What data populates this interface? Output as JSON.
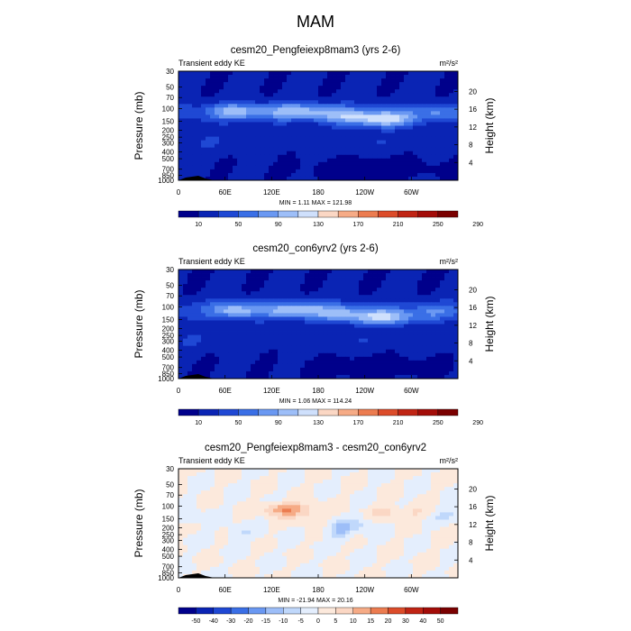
{
  "figure": {
    "title": "MAM"
  },
  "chart_data": [
    {
      "type": "heatmap",
      "title": "cesm20_Pengfeiexp8mam3 (yrs 2-6)",
      "subtitle_left": "Transient eddy KE",
      "units": "m²/s²",
      "xlabel": "",
      "ylabel": "Pressure (mb)",
      "ylabel_right": "Height (km)",
      "x_ticks": [
        "0",
        "60E",
        "120E",
        "180",
        "120W",
        "60W"
      ],
      "y_ticks": [
        "30",
        "50",
        "70",
        "100",
        "150",
        "200",
        "250",
        "300",
        "400",
        "500",
        "700",
        "850",
        "1000"
      ],
      "y_ticks_right": [
        "20",
        "16",
        "12",
        "8",
        "4"
      ],
      "minmax_text": "MIN =    1.11  MAX =   121.98",
      "colorbar_labels": [
        "10",
        "50",
        "90",
        "130",
        "170",
        "210",
        "250",
        "290"
      ]
    },
    {
      "type": "heatmap",
      "title": "cesm20_con6yrv2 (yrs 2-6)",
      "subtitle_left": "Transient eddy KE",
      "units": "m²/s²",
      "xlabel": "",
      "ylabel": "Pressure (mb)",
      "ylabel_right": "Height (km)",
      "x_ticks": [
        "0",
        "60E",
        "120E",
        "180",
        "120W",
        "60W"
      ],
      "y_ticks": [
        "30",
        "50",
        "70",
        "100",
        "150",
        "200",
        "250",
        "300",
        "400",
        "500",
        "700",
        "850",
        "1000"
      ],
      "y_ticks_right": [
        "20",
        "16",
        "12",
        "8",
        "4"
      ],
      "minmax_text": "MIN =    1.06  MAX =   114.24",
      "colorbar_labels": [
        "10",
        "50",
        "90",
        "130",
        "170",
        "210",
        "250",
        "290"
      ]
    },
    {
      "type": "heatmap",
      "title": "cesm20_Pengfeiexp8mam3 - cesm20_con6yrv2",
      "subtitle_left": "Transient eddy KE",
      "units": "m²/s²",
      "xlabel": "",
      "ylabel": "Pressure (mb)",
      "ylabel_right": "Height (km)",
      "x_ticks": [
        "0",
        "60E",
        "120E",
        "180",
        "120W",
        "60W"
      ],
      "y_ticks": [
        "30",
        "50",
        "70",
        "100",
        "150",
        "200",
        "250",
        "300",
        "400",
        "500",
        "700",
        "850",
        "1000"
      ],
      "y_ticks_right": [
        "20",
        "16",
        "12",
        "8",
        "4"
      ],
      "minmax_text": "MIN =  -21.94  MAX =   20.16",
      "colorbar_labels": [
        "-50",
        "-40",
        "-30",
        "-20",
        "-15",
        "-10",
        "-5",
        "0",
        "5",
        "10",
        "15",
        "20",
        "30",
        "40",
        "50"
      ]
    }
  ],
  "colors": {
    "seq": [
      "#00008b",
      "#0a24b4",
      "#1f48d4",
      "#3a6fe6",
      "#6a98f2",
      "#9dbef8",
      "#cfe0fc",
      "#fbd7c4",
      "#f6ab86",
      "#ec7c50",
      "#dc4c2a",
      "#c02414",
      "#a30c08",
      "#7a0000"
    ],
    "div": [
      "#00008b",
      "#0a24b4",
      "#1f48d4",
      "#3a6fe6",
      "#6a98f2",
      "#9dbef8",
      "#c0d8fb",
      "#e4eefd",
      "#fce9dc",
      "#fbd7c4",
      "#f6ab86",
      "#ec7c50",
      "#dc4c2a",
      "#c02414",
      "#a30c08",
      "#7a0000"
    ]
  }
}
